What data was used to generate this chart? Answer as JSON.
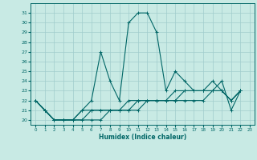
{
  "xlabel": "Humidex (Indice chaleur)",
  "ylabel": "",
  "xlim": [
    -0.5,
    23.5
  ],
  "ylim": [
    19.5,
    32.0
  ],
  "yticks": [
    20,
    21,
    22,
    23,
    24,
    25,
    26,
    27,
    28,
    29,
    30,
    31
  ],
  "xticks": [
    0,
    1,
    2,
    3,
    4,
    5,
    6,
    7,
    8,
    9,
    10,
    11,
    12,
    13,
    14,
    15,
    16,
    17,
    18,
    19,
    20,
    21,
    22,
    23
  ],
  "background_color": "#c8eae4",
  "grid_color": "#a0cccc",
  "line_color": "#006666",
  "series_x": [
    [
      0,
      1,
      2,
      3,
      4,
      5,
      6,
      7,
      8,
      9,
      10,
      11,
      12,
      13,
      14,
      15,
      16,
      17,
      18,
      19,
      20,
      21,
      22
    ],
    [
      0,
      1,
      2,
      3,
      4,
      5,
      6,
      7,
      8,
      9,
      10,
      11,
      12,
      13,
      14,
      15,
      16,
      17,
      18,
      19,
      20,
      21,
      22
    ],
    [
      0,
      1,
      2,
      3,
      4,
      5,
      6,
      7,
      8,
      9,
      10,
      11,
      12,
      13,
      14,
      15,
      16,
      17,
      18,
      19,
      20,
      21,
      22
    ],
    [
      0,
      1,
      2,
      3,
      4,
      5,
      6,
      7,
      8,
      9,
      10,
      11,
      12,
      13,
      14,
      15,
      16,
      17,
      18,
      19,
      20,
      21,
      22
    ]
  ],
  "series_y": [
    [
      22,
      21,
      20,
      20,
      20,
      21,
      22,
      27,
      24,
      22,
      30,
      31,
      31,
      29,
      23,
      25,
      24,
      23,
      23,
      23,
      24,
      21,
      23
    ],
    [
      22,
      21,
      20,
      20,
      20,
      20,
      20,
      20,
      21,
      21,
      21,
      21,
      22,
      22,
      22,
      22,
      22,
      22,
      22,
      23,
      23,
      22,
      23
    ],
    [
      22,
      21,
      20,
      20,
      20,
      20,
      21,
      21,
      21,
      21,
      21,
      22,
      22,
      22,
      22,
      22,
      23,
      23,
      23,
      23,
      23,
      22,
      23
    ],
    [
      22,
      21,
      20,
      20,
      20,
      21,
      21,
      21,
      21,
      21,
      22,
      22,
      22,
      22,
      22,
      23,
      23,
      23,
      23,
      24,
      23,
      22,
      23
    ]
  ]
}
